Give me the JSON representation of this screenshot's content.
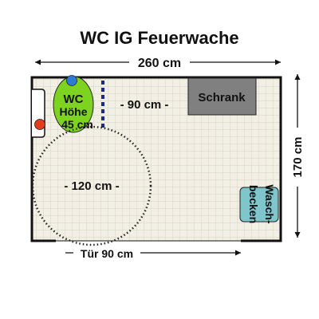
{
  "title": "WC IG Feuerwache",
  "dimensions": {
    "width": "260 cm",
    "height": "170 cm",
    "door": "Tür 90 cm"
  },
  "clearances": {
    "turning_circle": "- 120 cm -",
    "side_gap": "- 90 cm -"
  },
  "fixtures": {
    "wc_line1": "WC",
    "wc_line2": "Höhe",
    "wc_line3": "45 cm",
    "schrank": "Schrank",
    "wasch_line1": "Wasch-",
    "wasch_line2": "becken"
  },
  "colors": {
    "wc": "#7ed321",
    "schrank": "#808080",
    "waschbecken": "#7fc6cc",
    "flush_button": "#2e7bd6",
    "alarm": "#e53b1f",
    "grab_bar": "#1b2a8a",
    "tile": "#f2efe4",
    "grid": "#d8d3c4"
  }
}
